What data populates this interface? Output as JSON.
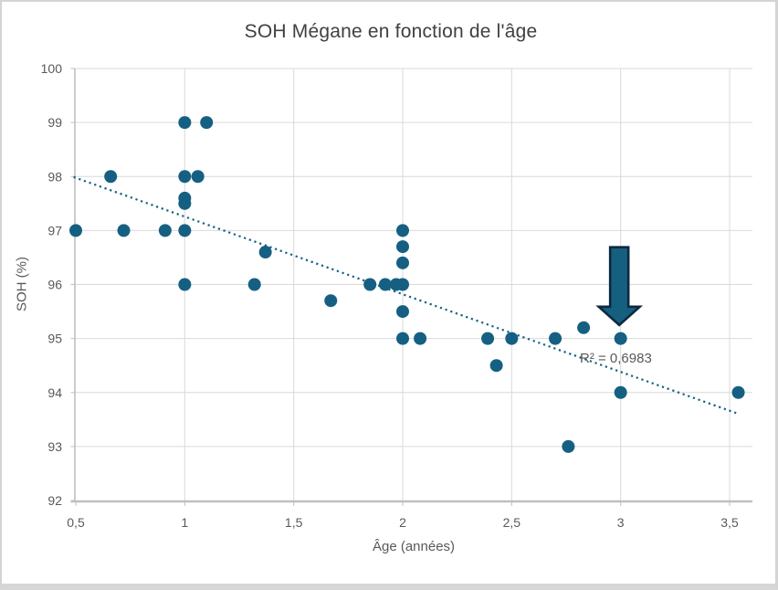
{
  "window": {
    "background": "#ffffff",
    "border_color": "#d4d4d4"
  },
  "chart_data": {
    "type": "scatter",
    "title": "SOH Mégane en fonction de l'âge",
    "xlabel": "Âge (années)",
    "ylabel": "SOH (%)",
    "xlim": [
      0.5,
      3.6
    ],
    "ylim": [
      92,
      100
    ],
    "grid": true,
    "legend": "none",
    "x_ticks": [
      0.5,
      1,
      1.5,
      2,
      2.5,
      3,
      3.5
    ],
    "x_tick_labels": [
      "0,5",
      "1",
      "1,5",
      "2",
      "2,5",
      "3",
      "3,5"
    ],
    "y_ticks": [
      92,
      93,
      94,
      95,
      96,
      97,
      98,
      99,
      100
    ],
    "y_tick_labels": [
      "92",
      "93",
      "94",
      "95",
      "96",
      "97",
      "98",
      "99",
      "100"
    ],
    "points": [
      [
        0.5,
        97
      ],
      [
        0.66,
        98
      ],
      [
        0.72,
        97
      ],
      [
        0.91,
        97
      ],
      [
        1,
        99
      ],
      [
        1.1,
        99
      ],
      [
        1,
        98
      ],
      [
        1.06,
        98
      ],
      [
        1,
        97.6
      ],
      [
        1,
        97.5
      ],
      [
        1,
        97
      ],
      [
        1,
        96
      ],
      [
        1.32,
        96
      ],
      [
        1.37,
        96.6
      ],
      [
        1.67,
        95.7
      ],
      [
        1.85,
        96
      ],
      [
        1.92,
        96
      ],
      [
        1.97,
        96
      ],
      [
        2,
        97
      ],
      [
        2,
        96.7
      ],
      [
        2,
        96.4
      ],
      [
        2,
        96
      ],
      [
        2,
        95.5
      ],
      [
        2,
        95
      ],
      [
        2.08,
        95
      ],
      [
        2.39,
        95
      ],
      [
        2.43,
        94.5
      ],
      [
        2.5,
        95
      ],
      [
        2.7,
        95
      ],
      [
        2.76,
        93
      ],
      [
        2.83,
        95.2
      ],
      [
        3,
        95
      ],
      [
        3,
        94
      ],
      [
        3.54,
        94
      ]
    ],
    "trendline": {
      "style": "dotted",
      "x1": 0.49,
      "y1": 97.99,
      "x2": 3.53,
      "y2": 93.62,
      "r_squared_label": "R² = 0,6983"
    },
    "annotation_arrow": {
      "direction": "down",
      "x": 3,
      "tip_y": 95.25,
      "top_y": 96.69
    },
    "colors": {
      "marker": "#156082",
      "trend": "#156082",
      "arrow_fill": "#16607f",
      "arrow_border": "#0e2841",
      "grid": "#d9d9d9",
      "axis": "#bfbfbf",
      "tick_text": "#595959",
      "title_text": "#404040"
    }
  }
}
